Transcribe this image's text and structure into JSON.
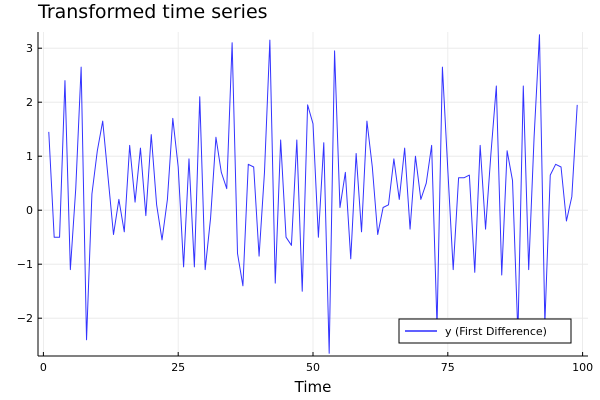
{
  "chart_data": {
    "type": "line",
    "title": "Transformed time series",
    "xlabel": "Time",
    "ylabel": "",
    "xlim": [
      -1,
      101
    ],
    "ylim": [
      -2.7,
      3.3
    ],
    "xticks": [
      0,
      25,
      50,
      75,
      100
    ],
    "yticks": [
      -2,
      -1,
      0,
      1,
      2,
      3
    ],
    "grid": true,
    "legend_position": "bottom-right",
    "series": [
      {
        "name": "y (First Difference)",
        "color": "#0000ff",
        "x": [
          1,
          2,
          3,
          4,
          5,
          6,
          7,
          8,
          9,
          10,
          11,
          12,
          13,
          14,
          15,
          16,
          17,
          18,
          19,
          20,
          21,
          22,
          23,
          24,
          25,
          26,
          27,
          28,
          29,
          30,
          31,
          32,
          33,
          34,
          35,
          36,
          37,
          38,
          39,
          40,
          41,
          42,
          43,
          44,
          45,
          46,
          47,
          48,
          49,
          50,
          51,
          52,
          53,
          54,
          55,
          56,
          57,
          58,
          59,
          60,
          61,
          62,
          63,
          64,
          65,
          66,
          67,
          68,
          69,
          70,
          71,
          72,
          73,
          74,
          75,
          76,
          77,
          78,
          79,
          80,
          81,
          82,
          83,
          84,
          85,
          86,
          87,
          88,
          89,
          90,
          91,
          92,
          93,
          94,
          95,
          96,
          97,
          98,
          99
        ],
        "y": [
          1.45,
          -0.5,
          -0.5,
          2.4,
          -1.1,
          0.4,
          2.65,
          -2.4,
          0.3,
          1.1,
          1.65,
          0.6,
          -0.45,
          0.2,
          -0.4,
          1.2,
          0.15,
          1.15,
          -0.1,
          1.4,
          0.1,
          -0.55,
          0.2,
          1.7,
          0.8,
          -1.05,
          0.95,
          -1.05,
          2.1,
          -1.1,
          -0.15,
          1.35,
          0.7,
          0.4,
          3.1,
          -0.8,
          -1.4,
          0.85,
          0.8,
          -0.85,
          0.7,
          3.15,
          -1.35,
          1.3,
          -0.5,
          -0.65,
          1.3,
          -1.5,
          1.95,
          1.6,
          -0.5,
          1.25,
          -2.65,
          2.95,
          0.05,
          0.7,
          -0.9,
          1.05,
          -0.4,
          1.65,
          0.8,
          -0.45,
          0.05,
          0.1,
          0.95,
          0.2,
          1.15,
          -0.35,
          1.0,
          0.2,
          0.5,
          1.2,
          -2.15,
          2.65,
          0.75,
          -1.1,
          0.6,
          0.6,
          0.65,
          -1.15,
          1.2,
          -0.35,
          1.05,
          2.3,
          -1.2,
          1.1,
          0.55,
          -2.3,
          2.3,
          -1.1,
          1.35,
          3.25,
          -2.1,
          0.65,
          0.85,
          0.8,
          -0.2,
          0.25,
          1.95
        ]
      }
    ]
  }
}
